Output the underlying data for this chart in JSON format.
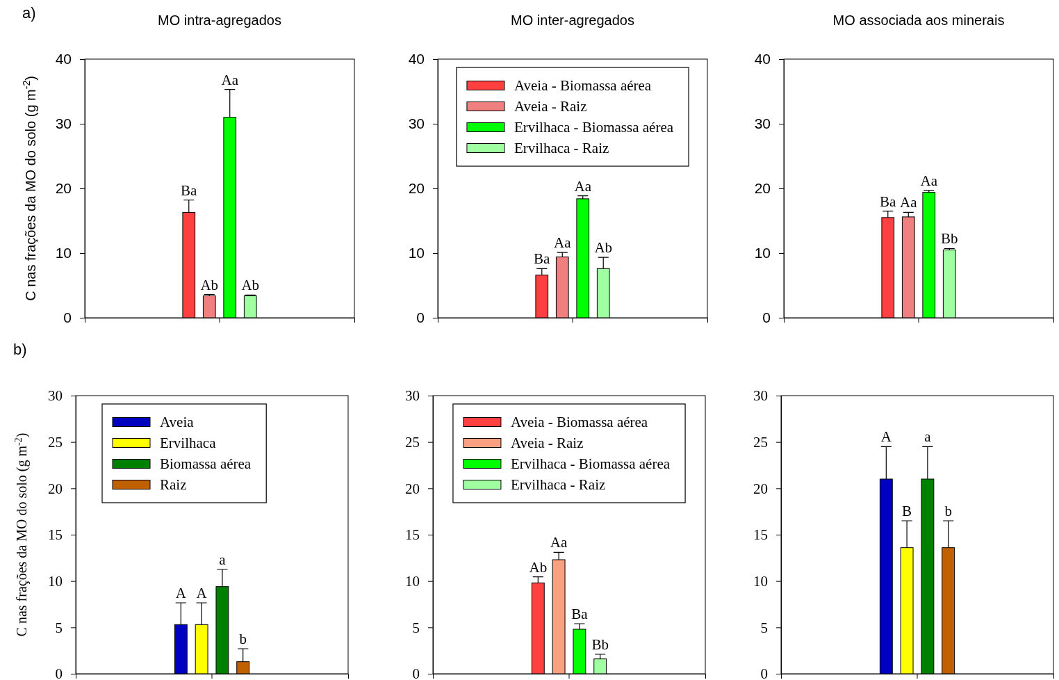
{
  "chart_data": [
    {
      "type": "bar",
      "title": "MO intra-agregados",
      "ylabel": "C nas frações da MO do solo (g m$^{-2}$)",
      "annotations": [
        "a)"
      ],
      "categories": [
        null
      ],
      "ylim": [
        0,
        40
      ],
      "yticks": [
        0,
        10,
        20,
        30,
        40
      ],
      "legend": false,
      "series": [
        {
          "color": "#ff4040",
          "values": [
            16.3
          ],
          "errors": [
            1.9
          ],
          "value_labels": [
            "Ba"
          ]
        },
        {
          "color": "#f08080",
          "values": [
            3.4
          ],
          "errors": [
            0.2
          ],
          "value_labels": [
            "Ab"
          ]
        },
        {
          "color": "#00ff00",
          "values": [
            31.0
          ],
          "errors": [
            4.3
          ],
          "value_labels": [
            "Aa"
          ]
        },
        {
          "color": "#a0ffa0",
          "values": [
            3.4
          ],
          "errors": [
            0.1
          ],
          "value_labels": [
            "Ab"
          ]
        }
      ]
    },
    {
      "type": "bar",
      "title": "MO inter-agregados",
      "categories": [
        null
      ],
      "ylim": [
        0,
        40
      ],
      "yticks": [
        0,
        10,
        20,
        30,
        40
      ],
      "legend": "top",
      "series": [
        {
          "name": "Aveia - Biomassa aérea",
          "color": "#ff4040",
          "values": [
            6.6
          ],
          "errors": [
            1.0
          ],
          "value_labels": [
            "Ba"
          ]
        },
        {
          "name": "Aveia - Raiz",
          "color": "#f08080",
          "values": [
            9.4
          ],
          "errors": [
            0.7
          ],
          "value_labels": [
            "Aa"
          ]
        },
        {
          "name": "Ervilhaca - Biomassa aérea",
          "color": "#00ff00",
          "values": [
            18.4
          ],
          "errors": [
            0.45
          ],
          "value_labels": [
            "Aa"
          ]
        },
        {
          "name": "Ervilhaca - Raiz",
          "color": "#a0ffa0",
          "values": [
            7.6
          ],
          "errors": [
            1.75
          ],
          "value_labels": [
            "Ab"
          ]
        }
      ]
    },
    {
      "type": "bar",
      "title": "MO associada aos minerais",
      "categories": [
        null
      ],
      "ylim": [
        0,
        40
      ],
      "yticks": [
        0,
        10,
        20,
        30,
        40
      ],
      "legend": false,
      "series": [
        {
          "color": "#ff4040",
          "values": [
            15.5
          ],
          "errors": [
            1.0
          ],
          "value_labels": [
            "Ba"
          ]
        },
        {
          "color": "#f08080",
          "values": [
            15.6
          ],
          "errors": [
            0.7
          ],
          "value_labels": [
            "Aa"
          ]
        },
        {
          "color": "#00ff00",
          "values": [
            19.4
          ],
          "errors": [
            0.3
          ],
          "value_labels": [
            "Aa"
          ]
        },
        {
          "color": "#a0ffa0",
          "values": [
            10.5
          ],
          "errors": [
            0.2
          ],
          "value_labels": [
            "Bb"
          ]
        }
      ]
    },
    {
      "type": "bar",
      "ylabel": "C nas frações da MO do solo (g m$^{-2}$)",
      "annotations": [
        "b)"
      ],
      "categories": [
        null
      ],
      "ylim": [
        0,
        30
      ],
      "yticks": [
        0,
        5,
        10,
        15,
        20,
        25,
        30
      ],
      "legend": "top left",
      "series": [
        {
          "name": "Aveia",
          "color": "#0000c0",
          "values": [
            5.3
          ],
          "errors": [
            2.35
          ],
          "value_labels": [
            "A"
          ]
        },
        {
          "name": "Ervilhaca",
          "color": "#ffff00",
          "values": [
            5.3
          ],
          "errors": [
            2.35
          ],
          "value_labels": [
            "A"
          ]
        },
        {
          "name": "Biomassa aérea",
          "color": "#008000",
          "values": [
            9.4
          ],
          "errors": [
            1.85
          ],
          "value_labels": [
            "a"
          ]
        },
        {
          "name": "Raiz",
          "color": "#c06000",
          "values": [
            1.3
          ],
          "errors": [
            1.4
          ],
          "value_labels": [
            "b"
          ]
        }
      ]
    },
    {
      "type": "bar",
      "categories": [
        null
      ],
      "ylim": [
        0,
        30
      ],
      "yticks": [
        0,
        5,
        10,
        15,
        20,
        25,
        30
      ],
      "legend": "top",
      "series": [
        {
          "name": "Aveia - Biomassa aérea",
          "color": "#ff4040",
          "values": [
            9.8
          ],
          "errors": [
            0.65
          ],
          "value_labels": [
            "Ab"
          ]
        },
        {
          "name": "Aveia - Raiz",
          "color": "#f8a080",
          "values": [
            12.3
          ],
          "errors": [
            0.8
          ],
          "value_labels": [
            "Aa"
          ]
        },
        {
          "name": "Ervilhaca - Biomassa aérea",
          "color": "#00ff00",
          "values": [
            4.8
          ],
          "errors": [
            0.6
          ],
          "value_labels": [
            "Ba"
          ]
        },
        {
          "name": "Ervilhaca - Raiz",
          "color": "#a0ffa0",
          "values": [
            1.6
          ],
          "errors": [
            0.5
          ],
          "value_labels": [
            "Bb"
          ]
        }
      ]
    },
    {
      "type": "bar",
      "categories": [
        null
      ],
      "ylim": [
        0,
        30
      ],
      "yticks": [
        0,
        5,
        10,
        15,
        20,
        25,
        30
      ],
      "legend": false,
      "series": [
        {
          "color": "#0000c0",
          "values": [
            21.0
          ],
          "errors": [
            3.5
          ],
          "value_labels": [
            "A"
          ]
        },
        {
          "color": "#ffff00",
          "values": [
            13.6
          ],
          "errors": [
            2.9
          ],
          "value_labels": [
            "B"
          ]
        },
        {
          "color": "#008000",
          "values": [
            21.0
          ],
          "errors": [
            3.5
          ],
          "value_labels": [
            "a"
          ]
        },
        {
          "color": "#c06000",
          "values": [
            13.6
          ],
          "errors": [
            2.9
          ],
          "value_labels": [
            "b"
          ]
        }
      ]
    }
  ]
}
